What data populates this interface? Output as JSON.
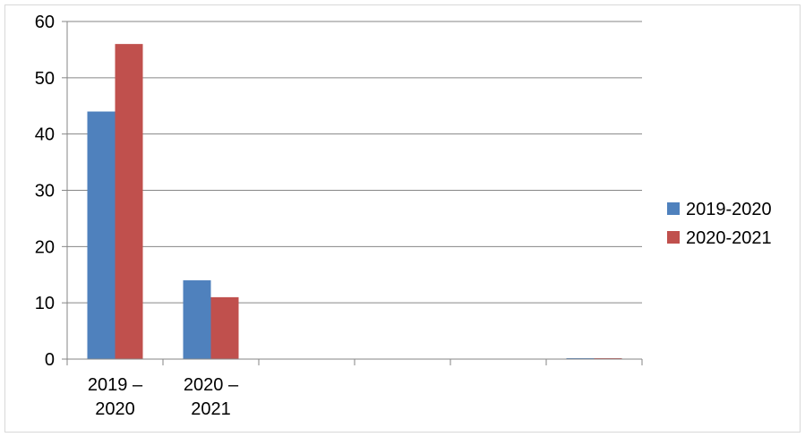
{
  "chart_data": {
    "type": "bar",
    "categories": [
      [
        "2019 –",
        "2020"
      ],
      [
        "2020 –",
        "2021"
      ],
      [
        ""
      ],
      [
        ""
      ],
      [
        ""
      ],
      [
        ""
      ]
    ],
    "series": [
      {
        "name": "2019-2020",
        "color": "#4f81bd",
        "values": [
          44,
          14,
          0,
          0,
          0,
          0
        ]
      },
      {
        "name": "2020-2021",
        "color": "#c0504d",
        "values": [
          56,
          11,
          0,
          0,
          0,
          0
        ]
      }
    ],
    "ylim": [
      0,
      60
    ],
    "yticks": [
      0,
      10,
      20,
      30,
      40,
      50,
      60
    ],
    "grid": true,
    "legend_position": "right",
    "title": "",
    "xlabel": "",
    "ylabel": ""
  }
}
